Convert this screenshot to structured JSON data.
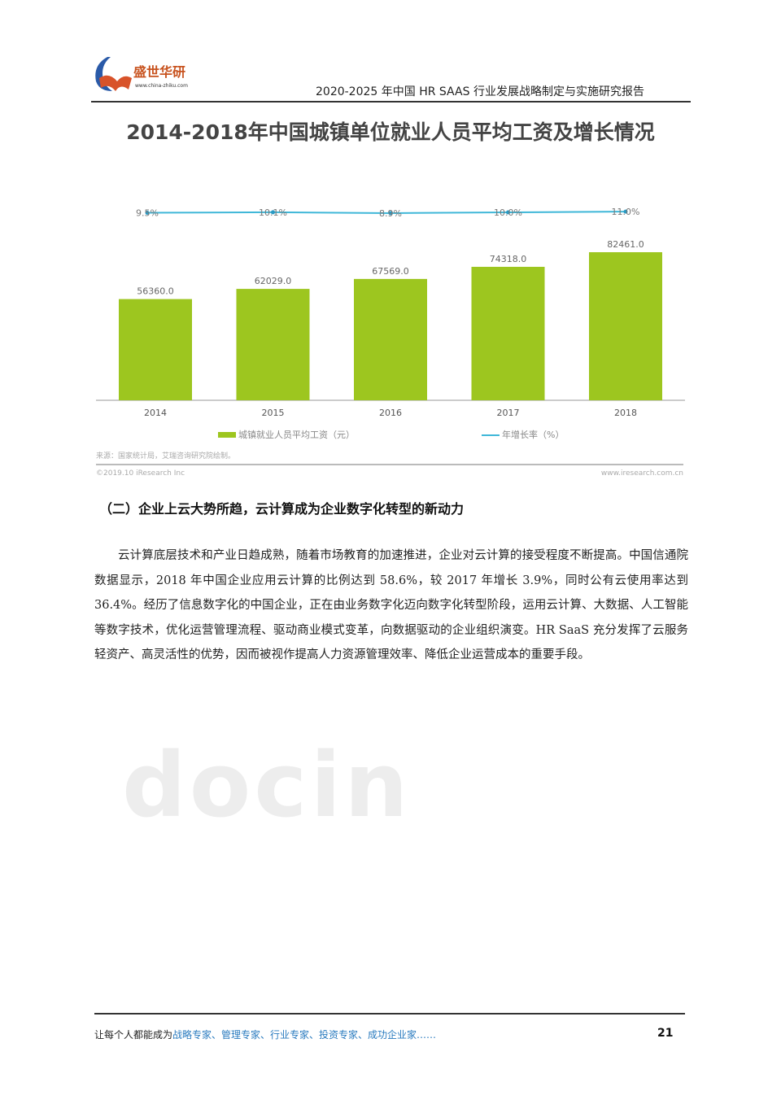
{
  "header": {
    "logo_name": "盛世华研",
    "logo_url": "www.china-zhiku.com",
    "title": "2020-2025 年中国 HR SAAS 行业发展战略制定与实施研究报告"
  },
  "chart_data": {
    "type": "bar",
    "title": "2014-2018年中国城镇单位就业人员平均工资及增长情况",
    "categories": [
      "2014",
      "2015",
      "2016",
      "2017",
      "2018"
    ],
    "series": [
      {
        "name": "城镇就业人员平均工资（元）",
        "type": "bar",
        "values": [
          56360.0,
          62029.0,
          67569.0,
          74318.0,
          82461.0
        ],
        "labels": [
          "56360.0",
          "62029.0",
          "67569.0",
          "74318.0",
          "82461.0"
        ],
        "color": "#9dc61f"
      },
      {
        "name": "年增长率（%）",
        "type": "line",
        "values": [
          9.5,
          10.1,
          8.9,
          10.0,
          11.0
        ],
        "labels": [
          "9.5%",
          "10.1%",
          "8.9%",
          "10.0%",
          "11.0%"
        ],
        "color": "#3fb7d8"
      }
    ],
    "legend": "bottom",
    "grid": false,
    "source": "来源：国家统计局，艾瑞咨询研究院绘制。",
    "copyright": "©2019.10 iResearch Inc",
    "site": "www.iresearch.com.cn"
  },
  "section": {
    "heading": "（二）企业上云大势所趋，云计算成为企业数字化转型的新动力",
    "paragraph": "云计算底层技术和产业日趋成熟，随着市场教育的加速推进，企业对云计算的接受程度不断提高。中国信通院数据显示，2018 年中国企业应用云计算的比例达到 58.6%，较 2017 年增长 3.9%，同时公有云使用率达到 36.4%。经历了信息数字化的中国企业，正在由业务数字化迈向数字化转型阶段，运用云计算、大数据、人工智能等数字技术，优化运营管理流程、驱动商业模式变革，向数据驱动的企业组织演变。HR SaaS 充分发挥了云服务轻资产、高灵活性的优势，因而被视作提高人力资源管理效率、降低企业运营成本的重要手段。"
  },
  "footer": {
    "slogan_prefix": "让每个人都能成为",
    "slogan_highlight": "战略专家、管理专家、行业专家、投资专家、成功企业家……",
    "page_number": "21"
  },
  "watermark": "docin"
}
